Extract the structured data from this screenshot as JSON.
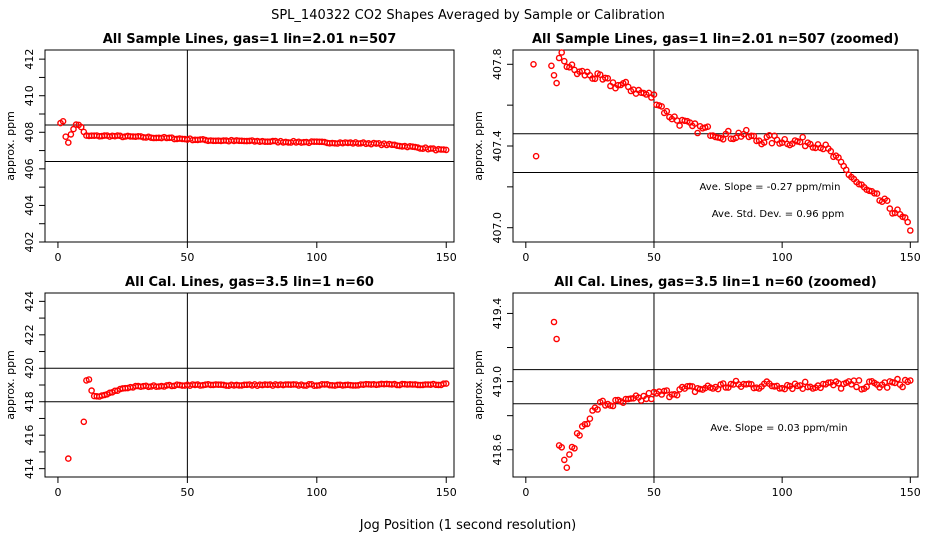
{
  "page": {
    "title": "SPL_140322  CO2 Shapes Averaged by Sample or Calibration",
    "xlabel": "Jog Position (1 second resolution)"
  },
  "chart_data": [
    {
      "type": "scatter",
      "title": "All Sample Lines, gas=1 lin=2.01 n=507",
      "ylabel": "approx. ppm",
      "xlim": [
        -5,
        153
      ],
      "ylim": [
        402,
        412.5
      ],
      "xticks": [
        "0",
        "50",
        "100",
        "150"
      ],
      "yticks": [
        "402",
        "404",
        "406",
        "408",
        "410",
        "412"
      ],
      "vline": 50,
      "hlines": [
        408.4,
        406.4
      ],
      "color": "#ff0000",
      "anchors": [
        [
          1,
          408.5
        ],
        [
          2,
          408.6
        ],
        [
          3,
          407.8
        ],
        [
          4,
          407.4
        ],
        [
          5,
          407.9
        ],
        [
          6,
          408.2
        ],
        [
          7,
          408.4
        ],
        [
          8,
          408.4
        ],
        [
          9,
          408.3
        ],
        [
          10,
          408.0
        ],
        [
          11,
          407.8
        ],
        [
          13,
          407.8
        ],
        [
          20,
          407.8
        ],
        [
          30,
          407.75
        ],
        [
          40,
          407.7
        ],
        [
          60,
          407.55
        ],
        [
          80,
          407.5
        ],
        [
          100,
          407.45
        ],
        [
          120,
          407.4
        ],
        [
          130,
          407.3
        ],
        [
          140,
          407.15
        ],
        [
          150,
          407.0
        ]
      ],
      "annotations": []
    },
    {
      "type": "scatter",
      "title": "All Sample Lines, gas=1 lin=2.01 n=507 (zoomed)",
      "ylabel": "approx. ppm",
      "xlim": [
        -5,
        153
      ],
      "ylim": [
        406.93,
        407.87
      ],
      "xticks": [
        "0",
        "50",
        "100",
        "150"
      ],
      "yticks": [
        "407.0",
        "407.4",
        "407.8"
      ],
      "vline": 50,
      "hlines": [
        407.46,
        407.27
      ],
      "color": "#ff0000",
      "anchors": [
        [
          3,
          407.8
        ],
        [
          4,
          407.35
        ],
        [
          10,
          407.78
        ],
        [
          11,
          407.75
        ],
        [
          12,
          407.72
        ],
        [
          13,
          407.82
        ],
        [
          14,
          407.84
        ],
        [
          16,
          407.8
        ],
        [
          20,
          407.76
        ],
        [
          25,
          407.75
        ],
        [
          30,
          407.72
        ],
        [
          35,
          407.7
        ],
        [
          40,
          407.69
        ],
        [
          45,
          407.66
        ],
        [
          50,
          407.64
        ],
        [
          55,
          407.56
        ],
        [
          60,
          407.52
        ],
        [
          65,
          407.49
        ],
        [
          70,
          407.48
        ],
        [
          75,
          407.46
        ],
        [
          80,
          407.45
        ],
        [
          85,
          407.46
        ],
        [
          90,
          407.43
        ],
        [
          95,
          407.43
        ],
        [
          100,
          407.43
        ],
        [
          105,
          407.42
        ],
        [
          110,
          407.42
        ],
        [
          115,
          407.41
        ],
        [
          120,
          407.35
        ],
        [
          125,
          407.28
        ],
        [
          130,
          407.21
        ],
        [
          135,
          407.16
        ],
        [
          140,
          407.12
        ],
        [
          145,
          407.07
        ],
        [
          150,
          407.0
        ]
      ],
      "annotations": [
        "Ave. Slope =  -0.27  ppm/min",
        "Ave. Std. Dev. =  0.96  ppm"
      ]
    },
    {
      "type": "scatter",
      "title": "All Cal. Lines, gas=3.5 lin=1 n=60",
      "ylabel": "approx. ppm",
      "xlim": [
        -5,
        153
      ],
      "ylim": [
        413.5,
        424.5
      ],
      "xticks": [
        "0",
        "50",
        "100",
        "150"
      ],
      "yticks": [
        "414",
        "416",
        "418",
        "420",
        "422",
        "424"
      ],
      "vline": 50,
      "hlines": [
        420.0,
        418.0
      ],
      "color": "#ff0000",
      "anchors": [
        [
          4,
          414.6
        ],
        [
          10,
          416.8
        ],
        [
          11,
          419.3
        ],
        [
          12,
          419.3
        ],
        [
          13,
          418.7
        ],
        [
          14,
          418.3
        ],
        [
          16,
          418.3
        ],
        [
          20,
          418.5
        ],
        [
          25,
          418.8
        ],
        [
          30,
          418.9
        ],
        [
          40,
          418.95
        ],
        [
          50,
          419.0
        ],
        [
          100,
          419.0
        ],
        [
          150,
          419.05
        ]
      ],
      "annotations": []
    },
    {
      "type": "scatter",
      "title": "All Cal. Lines, gas=3.5 lin=1 n=60 (zoomed)",
      "ylabel": "approx. ppm",
      "xlim": [
        -5,
        153
      ],
      "ylim": [
        418.44,
        419.52
      ],
      "xticks": [
        "0",
        "50",
        "100",
        "150"
      ],
      "yticks": [
        "418.6",
        "419.0",
        "419.4"
      ],
      "vline": 50,
      "hlines": [
        419.07,
        418.87
      ],
      "color": "#ff0000",
      "anchors": [
        [
          11,
          419.35
        ],
        [
          12,
          419.25
        ],
        [
          13,
          418.65
        ],
        [
          15,
          418.55
        ],
        [
          16,
          418.5
        ],
        [
          18,
          418.6
        ],
        [
          20,
          418.67
        ],
        [
          22,
          418.73
        ],
        [
          25,
          418.8
        ],
        [
          28,
          418.85
        ],
        [
          30,
          418.87
        ],
        [
          35,
          418.87
        ],
        [
          40,
          418.88
        ],
        [
          45,
          418.9
        ],
        [
          50,
          418.92
        ],
        [
          55,
          418.93
        ],
        [
          60,
          418.95
        ],
        [
          70,
          418.96
        ],
        [
          80,
          418.98
        ],
        [
          100,
          418.98
        ],
        [
          120,
          418.98
        ],
        [
          140,
          418.98
        ],
        [
          150,
          419.0
        ]
      ],
      "annotations": [
        "Ave. Slope =  0.03  ppm/min"
      ]
    }
  ]
}
